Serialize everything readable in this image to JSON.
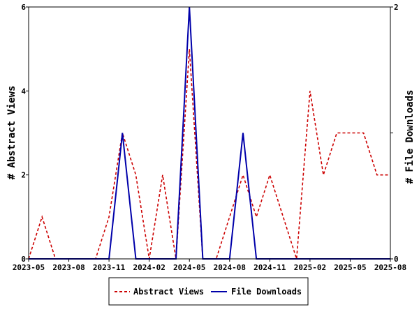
{
  "chart_data": {
    "type": "line",
    "x": [
      "2023-05",
      "2023-06",
      "2023-07",
      "2023-08",
      "2023-09",
      "2023-10",
      "2023-11",
      "2023-12",
      "2024-01",
      "2024-02",
      "2024-03",
      "2024-04",
      "2024-05",
      "2024-06",
      "2024-07",
      "2024-08",
      "2024-09",
      "2024-10",
      "2024-11",
      "2024-12",
      "2025-01",
      "2025-02",
      "2025-03",
      "2025-04",
      "2025-05",
      "2025-06",
      "2025-07",
      "2025-08"
    ],
    "x_ticks": [
      "2023-05",
      "2023-08",
      "2023-11",
      "2024-02",
      "2024-05",
      "2024-08",
      "2024-11",
      "2025-02",
      "2025-05",
      "2025-08"
    ],
    "series": [
      {
        "name": "Abstract Views",
        "axis": "left",
        "color": "#cc0000",
        "dash": "dashed",
        "values": [
          0,
          1,
          0,
          0,
          0,
          0,
          1,
          3,
          2,
          0,
          2,
          0,
          5,
          0,
          0,
          1,
          2,
          1,
          2,
          1,
          0,
          4,
          2,
          3,
          3,
          3,
          2,
          2
        ]
      },
      {
        "name": "File Downloads",
        "axis": "right",
        "color": "#0000aa",
        "dash": "solid",
        "values": [
          0,
          0,
          0,
          0,
          0,
          0,
          0,
          1,
          0,
          0,
          0,
          0,
          2,
          0,
          0,
          0,
          1,
          0,
          0,
          0,
          0,
          0,
          0,
          0,
          0,
          0,
          0,
          0
        ]
      }
    ],
    "ylabel_left": "# Abstract Views",
    "ylabel_right": "# File Downloads",
    "ylim_left": [
      0,
      6
    ],
    "yticks_left": [
      0,
      2,
      4,
      6
    ],
    "ylim_right": [
      0,
      2
    ],
    "yticks_right": [
      0,
      1,
      2
    ],
    "yticks_right_labels": [
      "0",
      "",
      "2"
    ],
    "legend_position": "bottom"
  }
}
